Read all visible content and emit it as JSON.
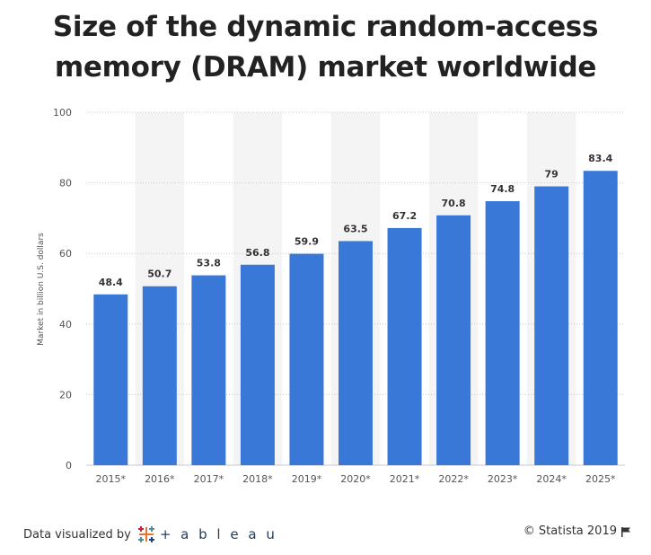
{
  "title_lines": [
    "Size of the dynamic random-access",
    "memory (DRAM) market worldwide"
  ],
  "footer": {
    "visualized_by": "Data visualized by",
    "tableau_name": "+ a b l e a u",
    "copyright": "© Statista 2019"
  },
  "icons": {
    "tableau": "tableau-logo-icon",
    "flag": "flag-icon"
  },
  "colors": {
    "bar": "#3a78d8",
    "band": "#f4f4f4",
    "grid": "#c8c8c8",
    "text": "#333333"
  },
  "chart_data": {
    "type": "bar",
    "title": "Size of the dynamic random-access memory (DRAM) market worldwide",
    "categories": [
      "2015*",
      "2016*",
      "2017*",
      "2018*",
      "2019*",
      "2020*",
      "2021*",
      "2022*",
      "2023*",
      "2024*",
      "2025*"
    ],
    "values": [
      48.4,
      50.7,
      53.8,
      56.8,
      59.9,
      63.5,
      67.2,
      70.8,
      74.8,
      79,
      83.4
    ],
    "data_labels": [
      "48.4",
      "50.7",
      "53.8",
      "56.8",
      "59.9",
      "63.5",
      "67.2",
      "70.8",
      "74.8",
      "79",
      "83.4"
    ],
    "ylabel": "Market in billion U.S. dollars",
    "xlabel": "",
    "ylim": [
      0,
      100
    ],
    "yticks": [
      0,
      20,
      40,
      60,
      80,
      100
    ],
    "grid": true
  }
}
